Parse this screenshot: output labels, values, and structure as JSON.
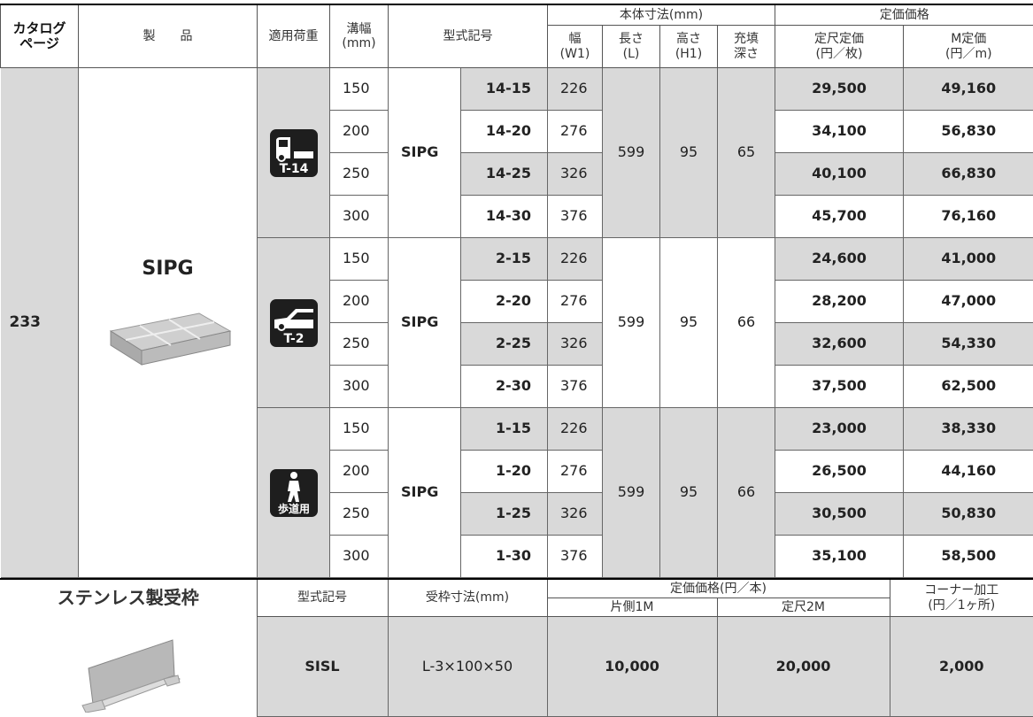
{
  "header": {
    "catalog_page": "カタログ\nページ",
    "product": "製　　品",
    "load": "適用荷重",
    "groove_width": "溝幅\n(mm)",
    "model": "型式記号",
    "body_dims": "本体寸法(mm)",
    "dims": [
      "幅\n(W1)",
      "長さ\n(L)",
      "高さ\n(H1)",
      "充填\n深さ"
    ],
    "list_price": "定価価格",
    "prices": [
      "定尺定価\n(円／枚)",
      "M定価\n(円／m)"
    ]
  },
  "catalog_page": 233,
  "product_name": "SIPG",
  "groups": [
    {
      "load_label": "T-14",
      "series": "SIPG",
      "length": 599,
      "height": 95,
      "depth": 65,
      "rows": [
        {
          "width": 150,
          "model": "14-15",
          "w1": 226,
          "price": "29,500",
          "price_m": "49,160"
        },
        {
          "width": 200,
          "model": "14-20",
          "w1": 276,
          "price": "34,100",
          "price_m": "56,830"
        },
        {
          "width": 250,
          "model": "14-25",
          "w1": 326,
          "price": "40,100",
          "price_m": "66,830"
        },
        {
          "width": 300,
          "model": "14-30",
          "w1": 376,
          "price": "45,700",
          "price_m": "76,160"
        }
      ]
    },
    {
      "load_label": "T-2",
      "series": "SIPG",
      "length": 599,
      "height": 95,
      "depth": 66,
      "rows": [
        {
          "width": 150,
          "model": "2-15",
          "w1": 226,
          "price": "24,600",
          "price_m": "41,000"
        },
        {
          "width": 200,
          "model": "2-20",
          "w1": 276,
          "price": "28,200",
          "price_m": "47,000"
        },
        {
          "width": 250,
          "model": "2-25",
          "w1": 326,
          "price": "32,600",
          "price_m": "54,330"
        },
        {
          "width": 300,
          "model": "2-30",
          "w1": 376,
          "price": "37,500",
          "price_m": "62,500"
        }
      ]
    },
    {
      "load_label": "歩道用",
      "series": "SIPG",
      "length": 599,
      "height": 95,
      "depth": 66,
      "rows": [
        {
          "width": 150,
          "model": "1-15",
          "w1": 226,
          "price": "23,000",
          "price_m": "38,330"
        },
        {
          "width": 200,
          "model": "1-20",
          "w1": 276,
          "price": "26,500",
          "price_m": "44,160"
        },
        {
          "width": 250,
          "model": "1-25",
          "w1": 326,
          "price": "30,500",
          "price_m": "50,830"
        },
        {
          "width": 300,
          "model": "1-30",
          "w1": 376,
          "price": "35,100",
          "price_m": "58,500"
        }
      ]
    }
  ],
  "frame": {
    "title": "ステンレス製受枠",
    "header": {
      "model": "型式記号",
      "size": "受枠寸法(mm)",
      "price": "定価価格(円／本)",
      "one_side": "片側1M",
      "standard": "定尺2M",
      "corner": "コーナー加工\n(円／1ヶ所)"
    },
    "row": {
      "model": "SISL",
      "size": "L-3×100×50",
      "one_side": "10,000",
      "standard": "20,000",
      "corner": "2,000"
    }
  }
}
